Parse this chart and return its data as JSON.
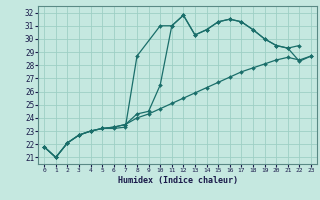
{
  "xlabel": "Humidex (Indice chaleur)",
  "bg_color": "#c5e8e0",
  "grid_color": "#9ecfc5",
  "line_color": "#1a6e6a",
  "xlim": [
    -0.5,
    23.5
  ],
  "ylim": [
    20.5,
    32.5
  ],
  "xticks": [
    0,
    1,
    2,
    3,
    4,
    5,
    6,
    7,
    8,
    9,
    10,
    11,
    12,
    13,
    14,
    15,
    16,
    17,
    18,
    19,
    20,
    21,
    22,
    23
  ],
  "yticks": [
    21,
    22,
    23,
    24,
    25,
    26,
    27,
    28,
    29,
    30,
    31,
    32
  ],
  "line1": {
    "x": [
      0,
      1,
      2,
      3,
      4,
      5,
      6,
      7,
      8,
      10,
      11,
      12,
      13,
      14,
      15,
      16,
      17,
      18,
      19,
      20,
      21,
      22
    ],
    "y": [
      21.8,
      21.0,
      22.1,
      22.7,
      23.0,
      23.2,
      23.2,
      23.3,
      28.7,
      31.0,
      31.0,
      31.8,
      30.3,
      30.7,
      31.3,
      31.5,
      31.3,
      30.7,
      30.0,
      29.5,
      29.3,
      29.5
    ]
  },
  "line2": {
    "x": [
      0,
      1,
      2,
      3,
      4,
      5,
      6,
      7,
      8,
      9,
      10,
      11,
      12,
      13,
      14,
      15,
      16,
      17,
      18,
      19,
      20,
      21,
      22,
      23
    ],
    "y": [
      21.8,
      21.0,
      22.1,
      22.7,
      23.0,
      23.2,
      23.3,
      23.5,
      24.0,
      24.3,
      24.7,
      25.1,
      25.5,
      25.9,
      26.3,
      26.7,
      27.1,
      27.5,
      27.8,
      28.1,
      28.4,
      28.6,
      28.4,
      28.7
    ]
  },
  "line3": {
    "x": [
      0,
      1,
      2,
      3,
      4,
      5,
      6,
      7,
      8,
      9,
      10,
      11,
      12,
      13,
      14,
      15,
      16,
      17,
      18,
      19,
      20,
      21,
      22,
      23
    ],
    "y": [
      21.8,
      21.0,
      22.1,
      22.7,
      23.0,
      23.2,
      23.3,
      23.5,
      24.3,
      24.5,
      26.5,
      31.0,
      31.8,
      30.3,
      30.7,
      31.3,
      31.5,
      31.3,
      30.7,
      30.0,
      29.5,
      29.3,
      28.3,
      28.7
    ]
  }
}
